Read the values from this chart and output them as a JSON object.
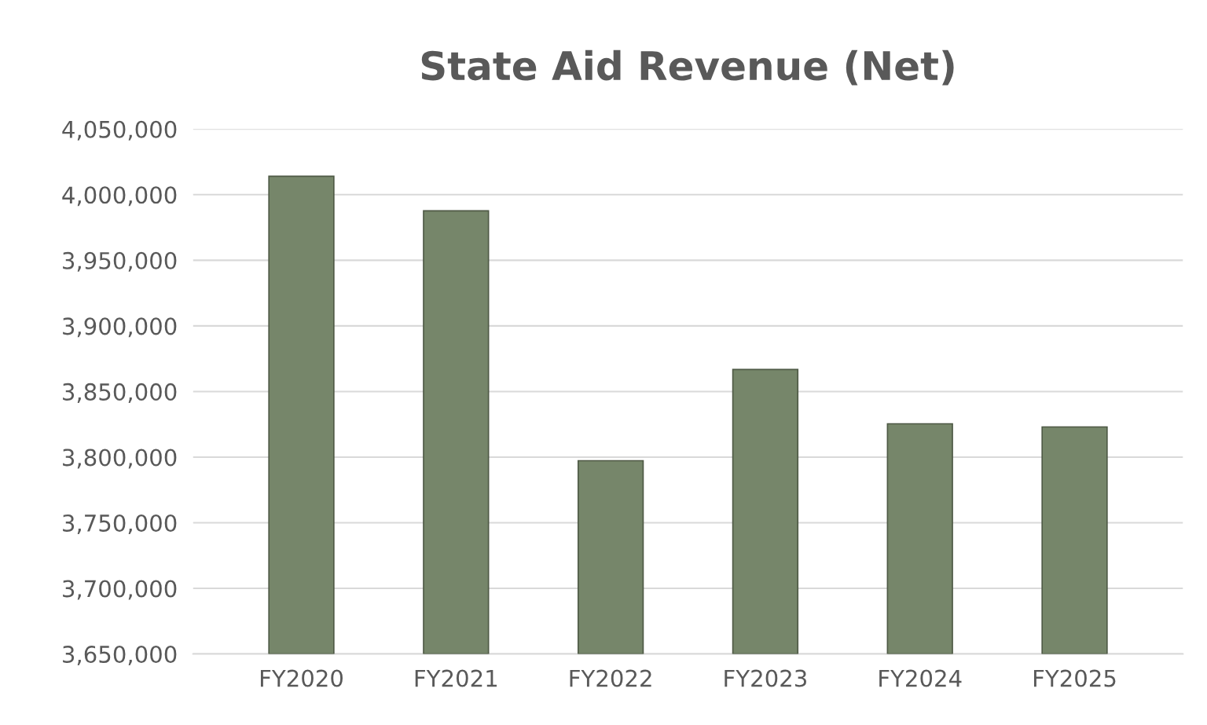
{
  "chart_data": {
    "type": "bar",
    "title": "State Aid Revenue (Net)",
    "categories": [
      "FY2020",
      "FY2021",
      "FY2022",
      "FY2023",
      "FY2024",
      "FY2025"
    ],
    "values": [
      4014000,
      3987700,
      3797300,
      3866800,
      3825400,
      3823000
    ],
    "color": "#76866a",
    "ylim": [
      3650000,
      4050000
    ],
    "yticks": [
      {
        "value": 3650000,
        "label": "3,650,000"
      },
      {
        "value": 3700000,
        "label": "3,700,000"
      },
      {
        "value": 3750000,
        "label": "3,750,000"
      },
      {
        "value": 3800000,
        "label": "3,800,000"
      },
      {
        "value": 3850000,
        "label": "3,850,000"
      },
      {
        "value": 3900000,
        "label": "3,900,000"
      },
      {
        "value": 3950000,
        "label": "3,950,000"
      },
      {
        "value": 4000000,
        "label": "4,000,000"
      },
      {
        "value": 4050000,
        "label": "4,050,000"
      }
    ],
    "grid": "y",
    "legend": false
  }
}
